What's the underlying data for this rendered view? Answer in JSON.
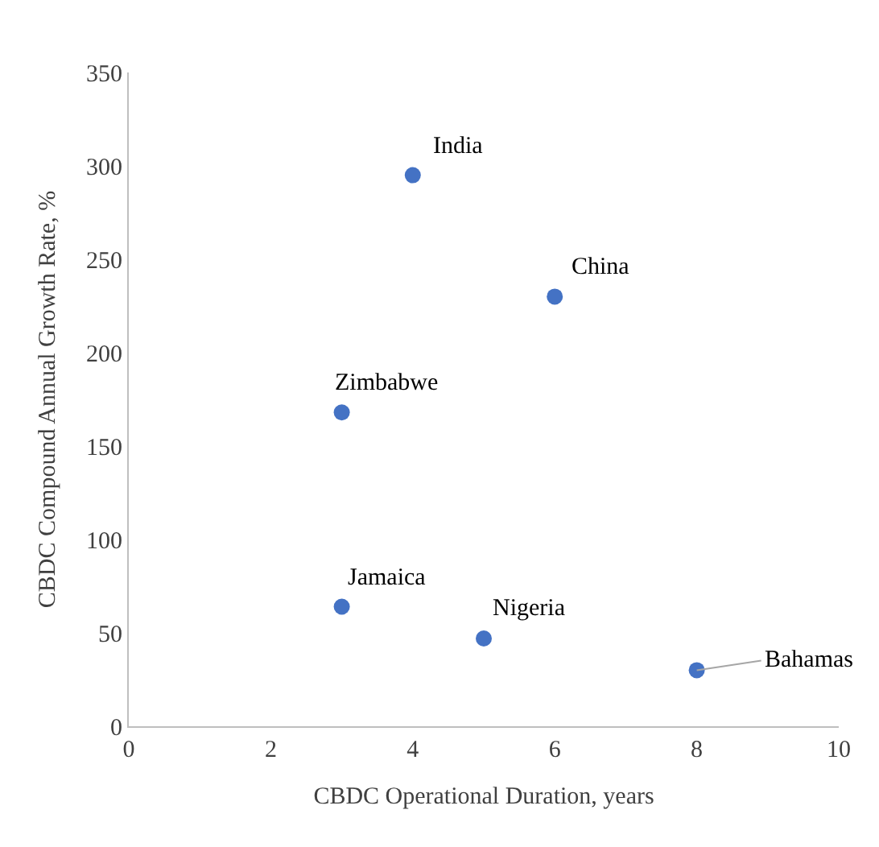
{
  "chart_data": {
    "type": "scatter",
    "xlabel": "CBDC Operational Duration, years",
    "ylabel": "CBDC Compound Annual Growth Rate, %",
    "x": [
      4,
      6,
      3,
      3,
      5,
      8
    ],
    "series": [
      {
        "color": "#4472c4",
        "values": [
          295,
          230,
          168,
          64,
          47,
          30
        ]
      }
    ],
    "xlim": [
      0,
      10
    ],
    "xticks": [
      0,
      2,
      4,
      6,
      8,
      10
    ],
    "ylim": [
      0,
      350
    ],
    "yticks": [
      0,
      50,
      100,
      150,
      200,
      250,
      300,
      350
    ],
    "marker": "circle",
    "annotations": [
      {
        "text": "India",
        "x": 4,
        "y": 295
      },
      {
        "text": "China",
        "x": 6,
        "y": 230
      },
      {
        "text": "Zimbabwe",
        "x": 3,
        "y": 168
      },
      {
        "text": "Jamaica",
        "x": 3,
        "y": 64
      },
      {
        "text": "Nigeria",
        "x": 5,
        "y": 47
      },
      {
        "text": "Bahamas",
        "x": 8,
        "y": 30
      }
    ]
  }
}
